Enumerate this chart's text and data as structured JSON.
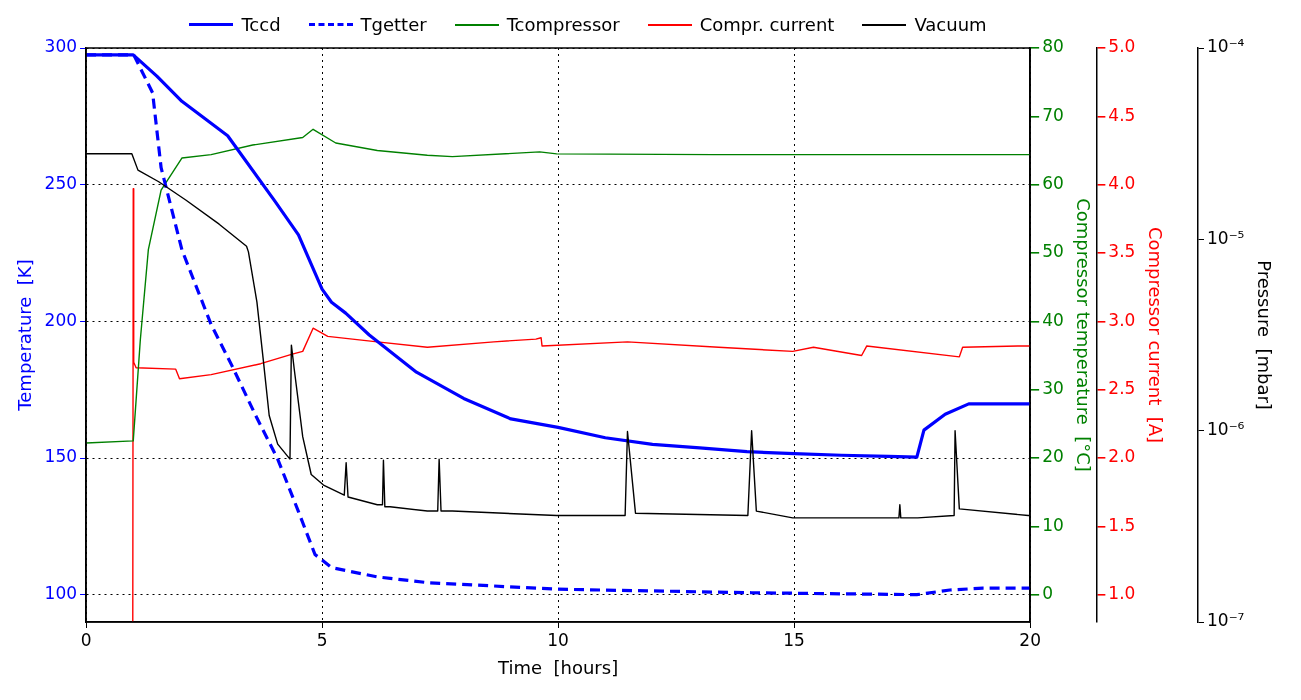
{
  "chart_data": [
    {
      "type": "line",
      "xlabel": "Time  [hours]",
      "ylabel": "Temperature  [K]",
      "y2label": "Compressor temperature  [°C]",
      "y3label": "Compressor current  [A]",
      "xlim": [
        0,
        20
      ],
      "xticks": [
        0,
        5,
        10,
        15,
        20
      ],
      "ylim": [
        90,
        300
      ],
      "yticks": [
        100,
        150,
        200,
        250,
        300
      ],
      "y2lim": [
        -4,
        80
      ],
      "y2ticks": [
        0,
        10,
        20,
        30,
        40,
        50,
        60,
        70,
        80
      ],
      "y3lim": [
        0.8,
        5.0
      ],
      "y3ticks": [
        {
          "value": 1,
          "label": "1.0"
        },
        1.5,
        {
          "value": 2,
          "label": "2.0"
        },
        2.5,
        {
          "value": 3,
          "label": "3.0"
        },
        3.5,
        {
          "value": 4,
          "label": "4.0"
        },
        4.5,
        {
          "value": 5,
          "label": "5.0"
        }
      ],
      "grid": true,
      "legend": "top",
      "marker": "none",
      "series": [
        {
          "name": "Tccd",
          "color": "#0000ff",
          "line_style": "solid",
          "x": [
            0,
            1,
            1.5,
            2.03,
            3,
            4,
            4.5,
            5,
            5.2,
            5.5,
            6,
            7,
            8,
            9,
            10,
            11,
            12,
            13,
            14,
            15,
            16,
            17,
            17.6,
            17.75,
            18.2,
            18.7,
            20
          ],
          "values": [
            297.5,
            297.5,
            289.7,
            280.5,
            267.9,
            244,
            231.6,
            211.8,
            207,
            203,
            195,
            181.4,
            171.8,
            164.3,
            161.2,
            157.4,
            155,
            153.7,
            152.3,
            151.6,
            151,
            150.6,
            150.3,
            160.2,
            166,
            169.8,
            169.8
          ]
        },
        {
          "name": "Tgetter",
          "color": "#0000ff",
          "line_style": "dashed",
          "x": [
            0,
            1.01,
            1.41,
            1.59,
            2.03,
            2.65,
            3.09,
            3.62,
            4.06,
            4.5,
            4.85,
            5.2,
            6.17,
            7.23,
            9.97,
            14.1,
            17.6,
            18.3,
            19,
            20
          ],
          "values": [
            297.5,
            297.5,
            283.6,
            256.2,
            226.2,
            198.8,
            183.8,
            164.6,
            149.6,
            130.4,
            114.7,
            109.9,
            106.5,
            104.4,
            102,
            100.7,
            100,
            101.7,
            102.4,
            102.4
          ]
        },
        {
          "name": "Tcompressor",
          "color": "#008000",
          "axis": "y2",
          "line_style": "solid",
          "x": [
            0,
            1,
            1.15,
            1.32,
            1.59,
            2.03,
            2.65,
            3.53,
            4.59,
            4.81,
            5.29,
            6.17,
            7.23,
            7.76,
            9.61,
            9.97,
            13.3,
            16,
            20
          ],
          "values": [
            22.2,
            22.5,
            37.3,
            50.5,
            59.2,
            63.9,
            64.4,
            65.8,
            66.9,
            68.1,
            66.1,
            65,
            64.3,
            64.1,
            64.8,
            64.5,
            64.4,
            64.4,
            64.4
          ]
        },
        {
          "name": "Compr. current",
          "color": "#ff0000",
          "axis": "y3",
          "line_style": "solid",
          "x": [
            0.99,
            1,
            1.01,
            1.06,
            1.9,
            1.98,
            2.65,
            3.7,
            4.37,
            4.59,
            4.81,
            5.12,
            6.17,
            7.23,
            8.64,
            9.53,
            9.64,
            9.66,
            11.47,
            13.4,
            14.97,
            15.41,
            16.43,
            16.54,
            18.5,
            18.57,
            19.74,
            20
          ],
          "values": [
            0.8,
            3.97,
            2.7,
            2.66,
            2.65,
            2.58,
            2.61,
            2.69,
            2.76,
            2.78,
            2.95,
            2.89,
            2.85,
            2.81,
            2.85,
            2.87,
            2.88,
            2.82,
            2.85,
            2.81,
            2.78,
            2.81,
            2.75,
            2.82,
            2.74,
            2.81,
            2.82,
            2.82
          ]
        }
      ]
    },
    {
      "type": "line",
      "ylabel": "Pressure  [mbar]",
      "tick_labels": "y",
      "log": "y",
      "legend": "top",
      "marker": "none",
      "xlim": [
        0,
        20
      ],
      "xticks": [
        0,
        5,
        10,
        15,
        20
      ],
      "ylim": [
        1e-07,
        0.0001
      ],
      "yticks": [
        {
          "value": 1e-07,
          "label": "10⁻⁷"
        },
        {
          "value": 1e-06,
          "label": "10⁻⁶"
        },
        {
          "value": 1e-05,
          "label": "10⁻⁵"
        },
        {
          "value": 0.0001,
          "label": "10⁻⁴"
        }
      ],
      "series": [
        {
          "name": "Vacuum",
          "color": "#000000",
          "line_style": "solid",
          "x": [
            0,
            0.97,
            1.1,
            1.54,
            2.12,
            2.82,
            3.4,
            3.44,
            3.62,
            3.75,
            3.88,
            4.06,
            4.32,
            4.35,
            4.41,
            4.59,
            4.77,
            5.03,
            5.47,
            5.51,
            5.55,
            6.17,
            6.28,
            6.3,
            6.33,
            6.44,
            7.23,
            7.45,
            7.48,
            7.52,
            7.76,
            9.97,
            11.42,
            11.47,
            11.64,
            14.02,
            14.1,
            14.2,
            14.97,
            17.22,
            17.24,
            17.26,
            17.62,
            18.39,
            18.41,
            18.5,
            19.96,
            20
          ],
          "values": [
            2.8e-05,
            2.8e-05,
            2.3e-05,
            2e-05,
            1.6e-05,
            1.2e-05,
            9.2e-06,
            8.6e-06,
            4.7e-06,
            2.4e-06,
            1.2e-06,
            8.5e-07,
            7.1e-07,
            2.8e-06,
            2.1e-06,
            9.3e-07,
            5.9e-07,
            5.2e-07,
            4.6e-07,
            6.8e-07,
            4.5e-07,
            4.1e-07,
            4.1e-07,
            7e-07,
            4e-07,
            4e-07,
            3.8e-07,
            3.8e-07,
            7.1e-07,
            3.8e-07,
            3.8e-07,
            3.6e-07,
            3.6e-07,
            9.9e-07,
            3.7e-07,
            3.6e-07,
            1e-06,
            3.8e-07,
            3.5e-07,
            3.5e-07,
            4.1e-07,
            3.5e-07,
            3.5e-07,
            3.6e-07,
            1e-06,
            3.9e-07,
            3.6e-07,
            3.6e-07
          ]
        }
      ]
    }
  ]
}
